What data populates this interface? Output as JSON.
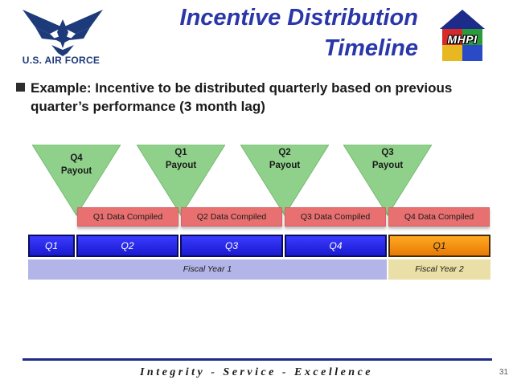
{
  "header": {
    "logo_text": "U.S. AIR FORCE",
    "title_line1": "Incentive Distribution",
    "title_line2": "Timeline",
    "badge_text": "MHPI"
  },
  "bullet": {
    "text": "Example:  Incentive to be distributed quarterly based on previous quarter’s performance (3 month lag)"
  },
  "payouts": [
    {
      "line1": "Q4",
      "line2": "Payout"
    },
    {
      "line1": "Q1",
      "line2": "Payout"
    },
    {
      "line1": "Q2",
      "line2": "Payout"
    },
    {
      "line1": "Q3",
      "line2": "Payout"
    }
  ],
  "data_compiled": [
    "Q1 Data Compiled",
    "Q2 Data Compiled",
    "Q3 Data Compiled",
    "Q4 Data Compiled"
  ],
  "quarters": [
    "Q1",
    "Q2",
    "Q3",
    "Q4",
    "Q1"
  ],
  "fiscal_years": [
    "Fiscal Year 1",
    "Fiscal Year 2"
  ],
  "footer": {
    "motto": "Integrity - Service - Excellence",
    "page_number": "31"
  },
  "colors": {
    "title": "#2a37a8",
    "payout_triangle": "#8fd18b",
    "data_compiled": "#e87070",
    "quarter_blue": "#2525e0",
    "quarter_orange": "#f5920f",
    "fiscal_year_1": "#b3b5e8",
    "fiscal_year_2": "#eadfa6"
  }
}
